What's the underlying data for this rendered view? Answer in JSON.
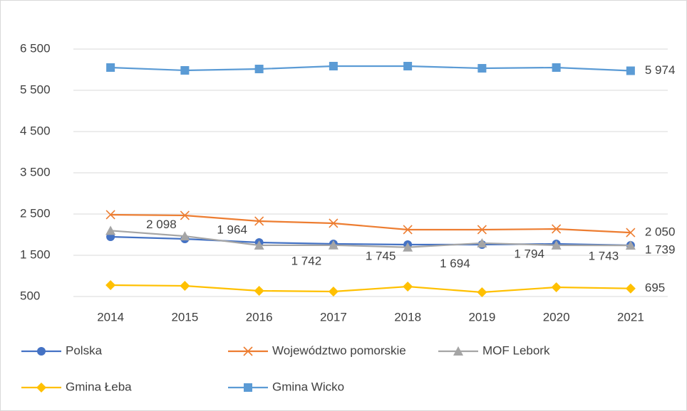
{
  "chart_data": {
    "type": "line",
    "categories": [
      "2014",
      "2015",
      "2016",
      "2017",
      "2018",
      "2019",
      "2020",
      "2021"
    ],
    "series": [
      {
        "name": "Polska",
        "color": "#4472c4",
        "marker": "circle",
        "values": [
          1948,
          1897,
          1810,
          1776,
          1759,
          1759,
          1776,
          1741
        ]
      },
      {
        "name": "Województwo pomorskie",
        "color": "#ed7d31",
        "marker": "x",
        "values": [
          2483,
          2466,
          2328,
          2276,
          2121,
          2121,
          2138,
          2050
        ],
        "value_labels": [
          null,
          null,
          null,
          null,
          null,
          null,
          null,
          "2 050"
        ]
      },
      {
        "name": "MOF Lebork",
        "color": "#a5a5a5",
        "marker": "triangle",
        "values": [
          2098,
          1964,
          1742,
          1745,
          1694,
          1794,
          1743,
          1739
        ],
        "value_labels": [
          "2 098",
          "1 964",
          "1 742",
          "1 745",
          "1 694",
          "1 794",
          "1 743",
          "1 739"
        ]
      },
      {
        "name": "Gmina Łeba",
        "color": "#ffc000",
        "marker": "diamond",
        "values": [
          776,
          759,
          638,
          621,
          741,
          603,
          724,
          695
        ],
        "value_labels": [
          null,
          null,
          null,
          null,
          null,
          null,
          null,
          "695"
        ]
      },
      {
        "name": "Gmina Wicko",
        "color": "#5b9bd5",
        "marker": "square",
        "values": [
          6052,
          5983,
          6017,
          6086,
          6086,
          6034,
          6052,
          5974
        ],
        "value_labels": [
          null,
          null,
          null,
          null,
          null,
          null,
          null,
          "5 974"
        ]
      }
    ],
    "ylim": [
      500,
      7000
    ],
    "yticks": [
      {
        "value": 500,
        "label": "500"
      },
      {
        "value": 1500,
        "label": "1 500"
      },
      {
        "value": 2500,
        "label": "2 500"
      },
      {
        "value": 3500,
        "label": "3 500"
      },
      {
        "value": 4500,
        "label": "4 500"
      },
      {
        "value": 5500,
        "label": "5 500"
      },
      {
        "value": 6500,
        "label": "6 500"
      }
    ],
    "grid": true
  }
}
